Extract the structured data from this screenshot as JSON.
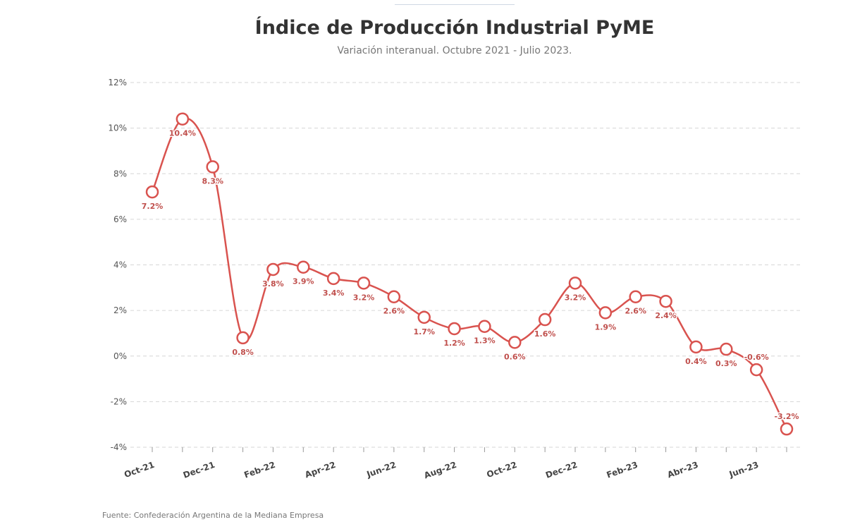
{
  "chart_data": {
    "type": "line",
    "title": "Índice de Producción Industrial PyME",
    "subtitle": "Variación interanual. Octubre 2021 - Julio 2023.",
    "source": "Fuente: Confederación Argentina de la Mediana Empresa",
    "color": "#d9534f",
    "ylim": [
      -4,
      12
    ],
    "y_ticks": [
      {
        "v": 12,
        "label": "12%"
      },
      {
        "v": 10,
        "label": "10%"
      },
      {
        "v": 8,
        "label": "8%"
      },
      {
        "v": 6,
        "label": "6%"
      },
      {
        "v": 4,
        "label": "4%"
      },
      {
        "v": 2,
        "label": "2%"
      },
      {
        "v": 0,
        "label": "0%"
      },
      {
        "v": -2,
        "label": "-2%"
      },
      {
        "v": -4,
        "label": "-4%"
      }
    ],
    "x_ticks": [
      {
        "i": 0,
        "label": "Oct-21"
      },
      {
        "i": 2,
        "label": "Dec-21"
      },
      {
        "i": 4,
        "label": "Feb-22"
      },
      {
        "i": 6,
        "label": "Apr-22"
      },
      {
        "i": 8,
        "label": "Jun-22"
      },
      {
        "i": 10,
        "label": "Aug-22"
      },
      {
        "i": 12,
        "label": "Oct-22"
      },
      {
        "i": 14,
        "label": "Dec-22"
      },
      {
        "i": 16,
        "label": "Feb-23"
      },
      {
        "i": 18,
        "label": "Abr-23"
      },
      {
        "i": 20,
        "label": "Jun-23"
      }
    ],
    "points": [
      {
        "v": 7.2,
        "label": "7.2%",
        "pos": "below"
      },
      {
        "v": 10.4,
        "label": "10.4%",
        "pos": "below"
      },
      {
        "v": 8.3,
        "label": "8.3%",
        "pos": "below"
      },
      {
        "v": 0.8,
        "label": "0.8%",
        "pos": "below"
      },
      {
        "v": 3.8,
        "label": "3.8%",
        "pos": "below"
      },
      {
        "v": 3.9,
        "label": "3.9%",
        "pos": "below"
      },
      {
        "v": 3.4,
        "label": "3.4%",
        "pos": "below"
      },
      {
        "v": 3.2,
        "label": "3.2%",
        "pos": "below"
      },
      {
        "v": 2.6,
        "label": "2.6%",
        "pos": "below"
      },
      {
        "v": 1.7,
        "label": "1.7%",
        "pos": "below"
      },
      {
        "v": 1.2,
        "label": "1.2%",
        "pos": "below"
      },
      {
        "v": 1.3,
        "label": "1.3%",
        "pos": "below"
      },
      {
        "v": 0.6,
        "label": "0.6%",
        "pos": "below"
      },
      {
        "v": 1.6,
        "label": "1.6%",
        "pos": "below"
      },
      {
        "v": 3.2,
        "label": "3.2%",
        "pos": "below"
      },
      {
        "v": 1.9,
        "label": "1.9%",
        "pos": "below"
      },
      {
        "v": 2.6,
        "label": "2.6%",
        "pos": "below"
      },
      {
        "v": 2.4,
        "label": "2.4%",
        "pos": "below"
      },
      {
        "v": 0.4,
        "label": "0.4%",
        "pos": "below"
      },
      {
        "v": 0.3,
        "label": "0.3%",
        "pos": "below"
      },
      {
        "v": -0.6,
        "label": "-0.6%",
        "pos": "above"
      },
      {
        "v": -3.2,
        "label": "-3.2%",
        "pos": "above"
      }
    ]
  }
}
